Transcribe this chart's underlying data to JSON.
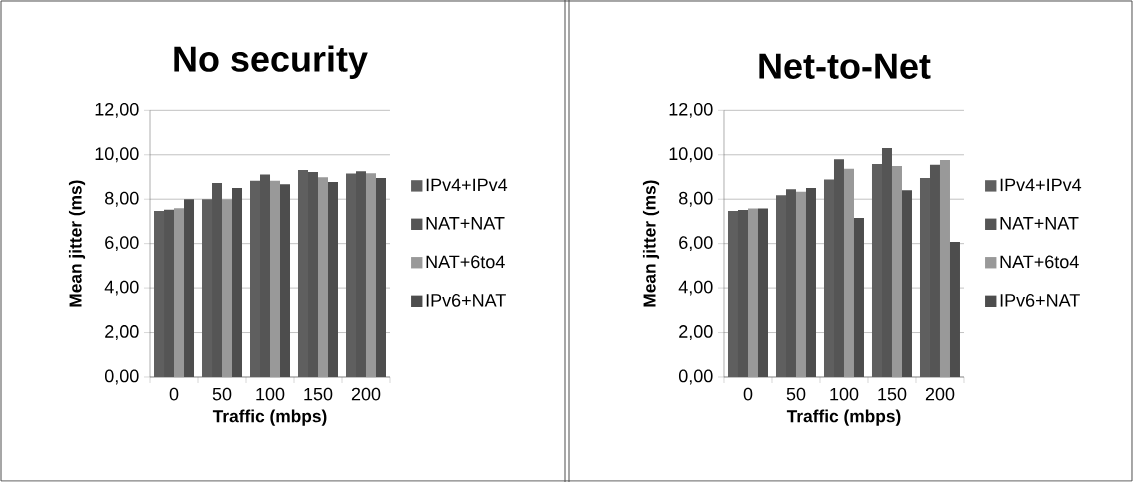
{
  "chart_data": [
    {
      "type": "bar",
      "title": "No security",
      "xlabel": "Traffic (mbps)",
      "ylabel": "Mean jitter (ms)",
      "categories": [
        "0",
        "50",
        "100",
        "150",
        "200"
      ],
      "series": [
        {
          "name": "IPv4+IPv4",
          "color": "#5f5f5f",
          "values": [
            7.47,
            8.0,
            8.83,
            9.32,
            9.16
          ]
        },
        {
          "name": "NAT+NAT",
          "color": "#555555",
          "values": [
            7.53,
            8.73,
            9.11,
            9.22,
            9.26
          ]
        },
        {
          "name": "NAT+6to4",
          "color": "#999999",
          "values": [
            7.59,
            8.0,
            8.83,
            8.99,
            9.17
          ]
        },
        {
          "name": "IPv6+NAT",
          "color": "#4d4d4d",
          "values": [
            8.0,
            8.51,
            8.67,
            8.78,
            8.95
          ]
        }
      ],
      "ylim": [
        0,
        12
      ],
      "yticks": [
        {
          "value": 0,
          "label": "0,00"
        },
        {
          "value": 2,
          "label": "2,00"
        },
        {
          "value": 4,
          "label": "4,00"
        },
        {
          "value": 6,
          "label": "6,00"
        },
        {
          "value": 8,
          "label": "8,00"
        },
        {
          "value": 10,
          "label": "10,00"
        },
        {
          "value": 12,
          "label": "12,00"
        }
      ],
      "grid": "y",
      "legend": "right"
    },
    {
      "type": "bar",
      "title": "Net-to-Net",
      "xlabel": "Traffic (mbps)",
      "ylabel": "Mean jitter (ms)",
      "categories": [
        "0",
        "50",
        "100",
        "150",
        "200"
      ],
      "series": [
        {
          "name": "IPv4+IPv4",
          "color": "#5f5f5f",
          "values": [
            7.47,
            8.18,
            8.89,
            9.59,
            8.95
          ]
        },
        {
          "name": "NAT+NAT",
          "color": "#555555",
          "values": [
            7.52,
            8.45,
            9.8,
            10.3,
            9.55
          ]
        },
        {
          "name": "NAT+6to4",
          "color": "#999999",
          "values": [
            7.58,
            8.34,
            9.37,
            9.49,
            9.76
          ]
        },
        {
          "name": "IPv6+NAT",
          "color": "#4d4d4d",
          "values": [
            7.58,
            8.51,
            7.15,
            8.4,
            6.07
          ]
        }
      ],
      "ylim": [
        0,
        12
      ],
      "yticks": [
        {
          "value": 0,
          "label": "0,00"
        },
        {
          "value": 2,
          "label": "2,00"
        },
        {
          "value": 4,
          "label": "4,00"
        },
        {
          "value": 6,
          "label": "6,00"
        },
        {
          "value": 8,
          "label": "8,00"
        },
        {
          "value": 10,
          "label": "10,00"
        },
        {
          "value": 12,
          "label": "12,00"
        }
      ],
      "grid": "y",
      "legend": "right"
    }
  ]
}
